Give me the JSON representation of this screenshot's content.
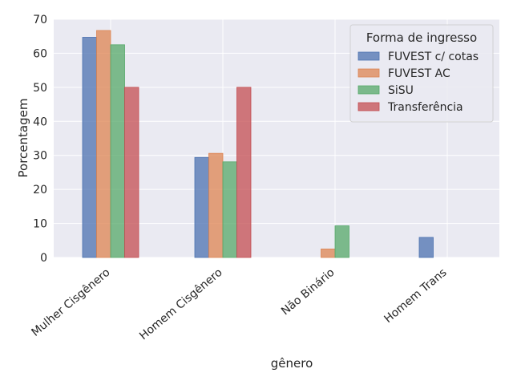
{
  "chart_data": {
    "type": "bar",
    "xlabel": "gênero",
    "ylabel": "Porcentagem",
    "ylim": [
      0,
      70
    ],
    "yticks": [
      0,
      10,
      20,
      30,
      40,
      50,
      60,
      70
    ],
    "grid": true,
    "legend_position": "top-right",
    "legend_title": "Forma de ingresso",
    "categories": [
      "Mulher Cisgênero",
      "Homem Cisgênero",
      "Não Binário",
      "Homem Trans"
    ],
    "series": [
      {
        "name": "FUVEST c/ cotas",
        "color": "#4c72b0",
        "values": [
          64.7,
          29.4,
          0,
          5.9
        ]
      },
      {
        "name": "FUVEST AC",
        "color": "#dd8452",
        "values": [
          66.7,
          30.6,
          2.5,
          0
        ]
      },
      {
        "name": "SiSU",
        "color": "#55a868",
        "values": [
          62.5,
          28.1,
          9.3,
          0
        ]
      },
      {
        "name": "Transferência",
        "color": "#c44e52",
        "values": [
          50.0,
          50.0,
          0,
          0
        ]
      }
    ]
  }
}
